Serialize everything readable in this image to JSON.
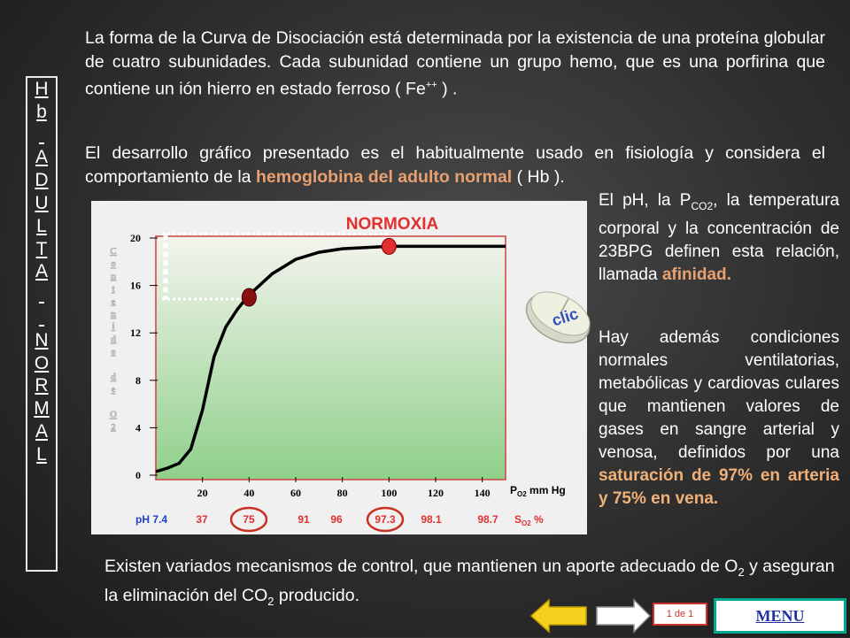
{
  "sidebar": {
    "chars": [
      "H",
      "b",
      "",
      "A",
      "D",
      "U",
      "L",
      "T",
      "A",
      "",
      "",
      "N",
      "O",
      "R",
      "M",
      "A",
      "L"
    ]
  },
  "intro": {
    "p1_a": "La forma de la Curva de Disociación está determinada  por la existencia de una proteína globular de cuatro subunidades. Cada subunidad contiene un grupo hemo, que es una porfirina que contiene un ión hierro en estado ferroso ( Fe",
    "p1_sup": "++",
    "p1_b": " ) .",
    "p2_a": "El desarrollo gráfico presentado es el habitualmente usado en fisiología y considera el comportamiento de la ",
    "p2_hl": "hemoglobina del adulto normal",
    "p2_b": " ( Hb )."
  },
  "right": {
    "p3_a": "El pH, la P",
    "p3_sub": "CO2",
    "p3_b": ", la temperatura corporal y la concentración de 23BPG definen esta relación, llamada ",
    "p3_hl": "afinidad.",
    "p4_a": "Hay además condiciones normales ventilatorias, metabólicas y cardiovas culares que mantienen valores de gases en sangre arterial y venosa, definidos por una ",
    "p4_hl": "saturación de 97% en arteria y 75% en vena."
  },
  "bottom": {
    "p5_a": "Existen variados mecanismos de control,  que mantienen un aporte adecuado de O",
    "p5_sub1": "2",
    "p5_b": " y aseguran la eliminación  del CO",
    "p5_sub2": "2",
    "p5_c": " producido."
  },
  "chart_data": {
    "type": "line",
    "title": "NORMOXIA",
    "xlabel": "P O2 mm Hg",
    "ylabel": "Contenido de O2",
    "xlim": [
      0,
      150
    ],
    "ylim": [
      0,
      20
    ],
    "x_ticks": [
      20,
      40,
      60,
      80,
      100,
      120,
      140
    ],
    "y_ticks": [
      0,
      4,
      8,
      12,
      16,
      20
    ],
    "series": [
      {
        "x": [
          0,
          5,
          10,
          15,
          20,
          25,
          30,
          35,
          40,
          50,
          60,
          70,
          80,
          90,
          100,
          110,
          120,
          130,
          140,
          150
        ],
        "y": [
          0.3,
          0.6,
          1.0,
          2.2,
          5.5,
          10.0,
          12.5,
          14.0,
          15.2,
          17.0,
          18.2,
          18.8,
          19.1,
          19.2,
          19.3,
          19.3,
          19.3,
          19.3,
          19.3,
          19.3
        ]
      }
    ],
    "markers": [
      {
        "x": 40,
        "y": 15.0,
        "label": "vena"
      },
      {
        "x": 100,
        "y": 19.3,
        "label": "arteria"
      }
    ],
    "ph_label": "pH 7.4",
    "saturation_values": [
      "37",
      "75",
      "91",
      "96",
      "97.3",
      "98.1",
      "98.7"
    ],
    "saturation_label": "S O2  %",
    "highlighted_saturations": [
      "75",
      "97.3"
    ]
  },
  "clic_label": "clic",
  "nav": {
    "page": "1 de 1",
    "menu": "MENU"
  },
  "colors": {
    "accent": "#e8a070",
    "curve_marker": "#e03030",
    "vein_marker": "#8a1010",
    "menu_border": "#00a890"
  }
}
